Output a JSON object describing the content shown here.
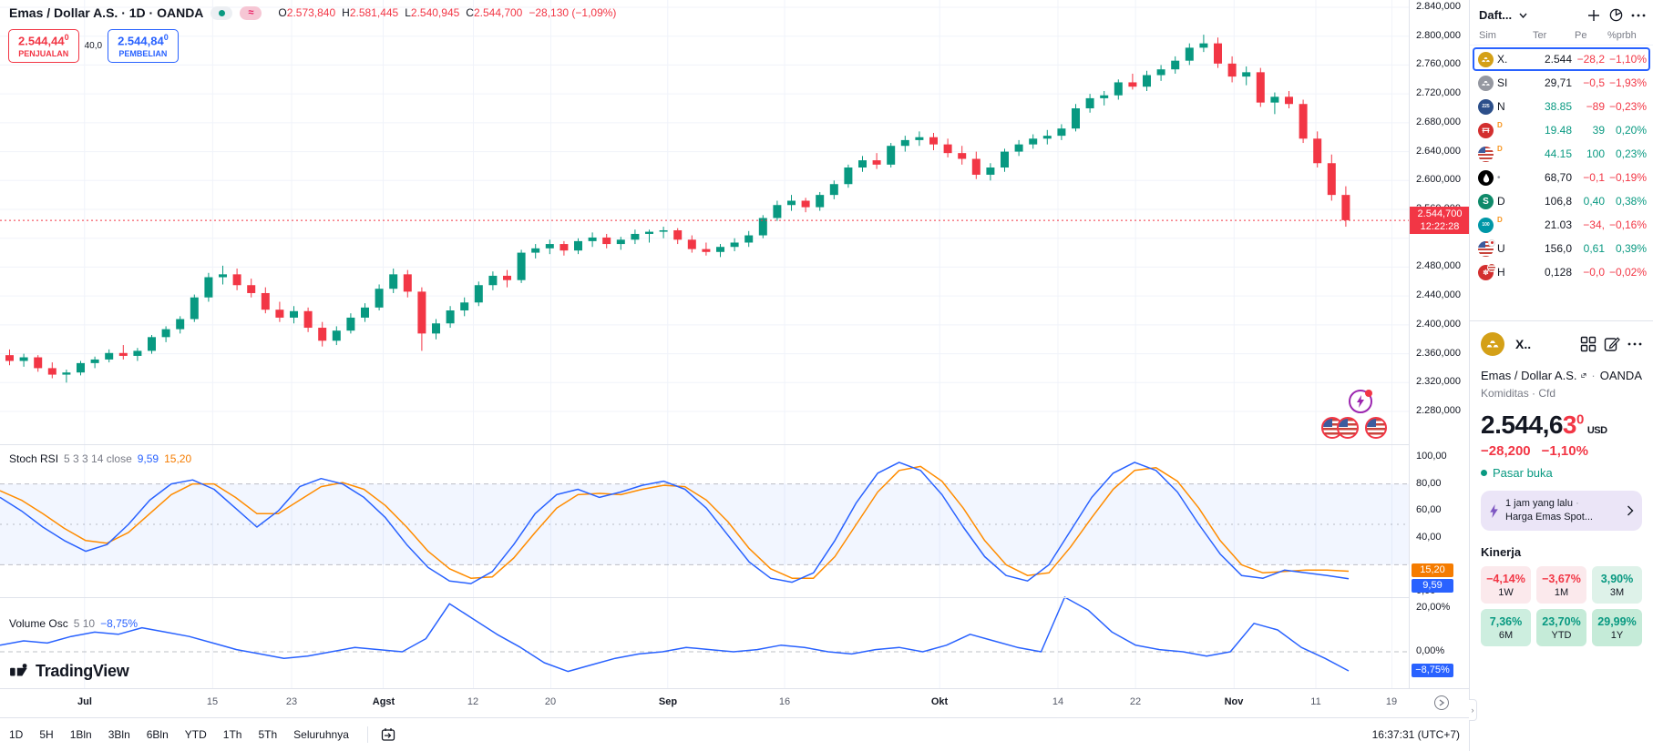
{
  "header": {
    "symbol_title": "Emas / Dollar A.S. · 1D · OANDA",
    "ohlc": {
      "o_label": "O",
      "o": "2.573,840",
      "h_label": "H",
      "h": "2.581,445",
      "l_label": "L",
      "l": "2.540,945",
      "c_label": "C",
      "c": "2.544,700",
      "change": "−28,130 (−1,09%)"
    },
    "sell": {
      "price": "2.544,44",
      "sup": "0",
      "label": "PENJUALAN"
    },
    "spread": "40,0",
    "buy": {
      "price": "2.544,84",
      "sup": "0",
      "label": "PEMBELIAN"
    }
  },
  "panes": {
    "stoch": {
      "title": "Stoch RSI",
      "params": "5 3 3 14 close",
      "k_value": "9,59",
      "d_value": "15,20"
    },
    "volume": {
      "title": "Volume Osc",
      "params": "5 10",
      "value": "−8,75%"
    }
  },
  "price_axis": {
    "labels": [
      {
        "t": "2.840,000",
        "v": 2840
      },
      {
        "t": "2.800,000",
        "v": 2800
      },
      {
        "t": "2.760,000",
        "v": 2760
      },
      {
        "t": "2.720,000",
        "v": 2720
      },
      {
        "t": "2.680,000",
        "v": 2680
      },
      {
        "t": "2.640,000",
        "v": 2640
      },
      {
        "t": "2.600,000",
        "v": 2600
      },
      {
        "t": "2.560,000",
        "v": 2560
      },
      {
        "t": "2.480,000",
        "v": 2480
      },
      {
        "t": "2.440,000",
        "v": 2440
      },
      {
        "t": "2.400,000",
        "v": 2400
      },
      {
        "t": "2.360,000",
        "v": 2360
      },
      {
        "t": "2.320,000",
        "v": 2320
      },
      {
        "t": "2.280,000",
        "v": 2280
      }
    ],
    "stoch_labels": [
      {
        "t": "100,00",
        "v": 100
      },
      {
        "t": "80,00",
        "v": 80
      },
      {
        "t": "60,00",
        "v": 60
      },
      {
        "t": "40,00",
        "v": 40
      },
      {
        "t": "0,00",
        "v": 0
      }
    ],
    "vol_labels": [
      {
        "t": "20,00%",
        "v": 20
      },
      {
        "t": "0,00%",
        "v": 0
      }
    ],
    "last": {
      "price": "2.544,700",
      "time": "12:22:28"
    },
    "k_badge": "9,59",
    "d_badge": "15,20",
    "vol_badge": "−8,75%"
  },
  "time_axis": {
    "labels": [
      {
        "t": "Jul",
        "f": 0.06,
        "m": true
      },
      {
        "t": "15",
        "f": 0.151
      },
      {
        "t": "23",
        "f": 0.207
      },
      {
        "t": "Agst",
        "f": 0.272,
        "m": true
      },
      {
        "t": "12",
        "f": 0.336
      },
      {
        "t": "20",
        "f": 0.391
      },
      {
        "t": "Sep",
        "f": 0.474,
        "m": true
      },
      {
        "t": "16",
        "f": 0.557
      },
      {
        "t": "Okt",
        "f": 0.667,
        "m": true
      },
      {
        "t": "14",
        "f": 0.751
      },
      {
        "t": "22",
        "f": 0.806
      },
      {
        "t": "Nov",
        "f": 0.876,
        "m": true
      },
      {
        "t": "11",
        "f": 0.934
      },
      {
        "t": "19",
        "f": 0.988
      }
    ]
  },
  "toolbar": {
    "ranges": [
      "1D",
      "5H",
      "1Bln",
      "3Bln",
      "6Bln",
      "YTD",
      "1Th",
      "5Th",
      "Seluruhnya"
    ],
    "clock": "16:37:31 (UTC+7)"
  },
  "attribution": "TradingView",
  "watchlist": {
    "title": "Daft...",
    "columns": [
      "Sim",
      "Ter",
      "Pe",
      "%prbh"
    ],
    "rows": [
      {
        "icon": "gold",
        "sym": "X.",
        "last": "2.544",
        "chg": "−28,2",
        "pct": "−1,10%",
        "last_c": "dark",
        "dir": "down",
        "selected": true
      },
      {
        "icon": "silver",
        "sym": "SI",
        "last": "29,71",
        "chg": "−0,5",
        "pct": "−1,93%",
        "last_c": "dark",
        "dir": "down"
      },
      {
        "icon": "n225",
        "sym": "N",
        "last": "38.85",
        "chg": "−89",
        "pct": "−0,23%",
        "last_c": "up",
        "dir": "down"
      },
      {
        "icon": "redidx",
        "sym": "",
        "d": true,
        "last": "19.48",
        "chg": "39",
        "pct": "0,20%",
        "last_c": "up",
        "dir": "up"
      },
      {
        "icon": "usflag",
        "sym": "",
        "d": true,
        "last": "44.15",
        "chg": "100",
        "pct": "0,23%",
        "last_c": "up",
        "dir": "up"
      },
      {
        "icon": "oil",
        "sym": "",
        "dot": true,
        "last": "68,70",
        "chg": "−0,1",
        "pct": "−0,19%",
        "last_c": "dark",
        "dir": "down"
      },
      {
        "icon": "sgreen",
        "sym": "D",
        "last": "106,8",
        "chg": "0,40",
        "pct": "0,38%",
        "last_c": "dark",
        "dir": "up"
      },
      {
        "icon": "c100",
        "sym": "",
        "d": true,
        "last": "21.03",
        "chg": "−34,",
        "pct": "−0,16%",
        "last_c": "dark",
        "dir": "down"
      },
      {
        "icon": "usjp",
        "sym": "U",
        "last": "156,0",
        "chg": "0,61",
        "pct": "0,39%",
        "last_c": "dark",
        "dir": "up"
      },
      {
        "icon": "hkus",
        "sym": "H",
        "last": "0,128",
        "chg": "−0,0",
        "pct": "−0,02%",
        "last_c": "dark",
        "dir": "down"
      }
    ]
  },
  "detail": {
    "sym_short": "X..",
    "name": "Emas / Dollar A.S.",
    "exchange": "OANDA",
    "type": "Komiditas · Cfd",
    "price_main": "2.544,6",
    "price_red": "3",
    "price_sup": "0",
    "currency": "USD",
    "change": "−28,200",
    "change_pct": "−1,10%",
    "market_status": "Pasar buka",
    "news": {
      "time": "1 jam yang lalu",
      "title": "Harga Emas Spot..."
    },
    "kinerja": {
      "title": "Kinerja",
      "cells": [
        {
          "v": "−4,14%",
          "p": "1W",
          "neg": true,
          "bg": "#fbe9ec"
        },
        {
          "v": "−3,67%",
          "p": "1M",
          "neg": true,
          "bg": "#fbe9ec"
        },
        {
          "v": "3,90%",
          "p": "3M",
          "neg": false,
          "bg": "#def2e9"
        },
        {
          "v": "7,36%",
          "p": "6M",
          "neg": false,
          "bg": "#cdeedf"
        },
        {
          "v": "23,70%",
          "p": "YTD",
          "neg": false,
          "bg": "#c5ebd8"
        },
        {
          "v": "29,99%",
          "p": "1Y",
          "neg": false,
          "bg": "#c5ebd8"
        }
      ]
    }
  },
  "chart_data": {
    "type": "candlestick",
    "symbol": "XAUUSD",
    "interval": "1D",
    "title": "Emas / Dollar A.S. 1D OANDA",
    "price_range": [
      2280,
      2840
    ],
    "grid_step": 40,
    "last_price": 2544.7,
    "up_color": "#089981",
    "down_color": "#f23645",
    "candles": [
      [
        2358,
        2366,
        2344,
        2350
      ],
      [
        2350,
        2360,
        2342,
        2355
      ],
      [
        2355,
        2358,
        2335,
        2340
      ],
      [
        2340,
        2348,
        2326,
        2331
      ],
      [
        2331,
        2338,
        2320,
        2334
      ],
      [
        2334,
        2350,
        2330,
        2347
      ],
      [
        2347,
        2356,
        2340,
        2352
      ],
      [
        2352,
        2366,
        2348,
        2361
      ],
      [
        2361,
        2372,
        2352,
        2357
      ],
      [
        2357,
        2368,
        2350,
        2364
      ],
      [
        2364,
        2386,
        2360,
        2383
      ],
      [
        2383,
        2398,
        2376,
        2394
      ],
      [
        2394,
        2412,
        2388,
        2408
      ],
      [
        2408,
        2442,
        2404,
        2438
      ],
      [
        2438,
        2472,
        2432,
        2466
      ],
      [
        2466,
        2482,
        2456,
        2470
      ],
      [
        2470,
        2478,
        2448,
        2455
      ],
      [
        2455,
        2464,
        2438,
        2444
      ],
      [
        2444,
        2452,
        2416,
        2421
      ],
      [
        2421,
        2432,
        2404,
        2410
      ],
      [
        2410,
        2426,
        2402,
        2419
      ],
      [
        2419,
        2424,
        2390,
        2396
      ],
      [
        2396,
        2404,
        2370,
        2378
      ],
      [
        2378,
        2398,
        2372,
        2392
      ],
      [
        2392,
        2416,
        2388,
        2410
      ],
      [
        2410,
        2430,
        2404,
        2424
      ],
      [
        2424,
        2456,
        2420,
        2450
      ],
      [
        2450,
        2478,
        2444,
        2470
      ],
      [
        2470,
        2476,
        2438,
        2446
      ],
      [
        2446,
        2452,
        2364,
        2388
      ],
      [
        2388,
        2408,
        2380,
        2402
      ],
      [
        2402,
        2426,
        2396,
        2420
      ],
      [
        2420,
        2438,
        2412,
        2431
      ],
      [
        2431,
        2460,
        2426,
        2455
      ],
      [
        2455,
        2474,
        2448,
        2468
      ],
      [
        2468,
        2476,
        2452,
        2462
      ],
      [
        2462,
        2504,
        2458,
        2500
      ],
      [
        2500,
        2512,
        2492,
        2506
      ],
      [
        2506,
        2518,
        2498,
        2512
      ],
      [
        2512,
        2516,
        2496,
        2503
      ],
      [
        2503,
        2520,
        2498,
        2516
      ],
      [
        2516,
        2528,
        2508,
        2521
      ],
      [
        2521,
        2526,
        2506,
        2512
      ],
      [
        2512,
        2522,
        2504,
        2518
      ],
      [
        2518,
        2532,
        2512,
        2526
      ],
      [
        2526,
        2532,
        2514,
        2529
      ],
      [
        2529,
        2536,
        2520,
        2531
      ],
      [
        2531,
        2534,
        2512,
        2518
      ],
      [
        2518,
        2524,
        2500,
        2505
      ],
      [
        2505,
        2514,
        2496,
        2501
      ],
      [
        2501,
        2512,
        2494,
        2508
      ],
      [
        2508,
        2520,
        2502,
        2514
      ],
      [
        2514,
        2530,
        2508,
        2524
      ],
      [
        2524,
        2552,
        2520,
        2548
      ],
      [
        2548,
        2572,
        2544,
        2566
      ],
      [
        2566,
        2580,
        2558,
        2572
      ],
      [
        2572,
        2576,
        2556,
        2563
      ],
      [
        2563,
        2584,
        2558,
        2580
      ],
      [
        2580,
        2600,
        2574,
        2595
      ],
      [
        2595,
        2622,
        2590,
        2618
      ],
      [
        2618,
        2634,
        2612,
        2628
      ],
      [
        2628,
        2638,
        2616,
        2622
      ],
      [
        2622,
        2652,
        2618,
        2648
      ],
      [
        2648,
        2662,
        2640,
        2656
      ],
      [
        2656,
        2668,
        2648,
        2660
      ],
      [
        2660,
        2666,
        2642,
        2650
      ],
      [
        2650,
        2658,
        2632,
        2638
      ],
      [
        2638,
        2648,
        2622,
        2630
      ],
      [
        2630,
        2640,
        2602,
        2608
      ],
      [
        2608,
        2624,
        2600,
        2618
      ],
      [
        2618,
        2644,
        2612,
        2640
      ],
      [
        2640,
        2656,
        2634,
        2650
      ],
      [
        2650,
        2664,
        2644,
        2658
      ],
      [
        2658,
        2670,
        2650,
        2662
      ],
      [
        2662,
        2678,
        2656,
        2672
      ],
      [
        2672,
        2706,
        2668,
        2700
      ],
      [
        2700,
        2720,
        2694,
        2714
      ],
      [
        2714,
        2724,
        2704,
        2718
      ],
      [
        2718,
        2740,
        2712,
        2736
      ],
      [
        2736,
        2748,
        2726,
        2730
      ],
      [
        2730,
        2752,
        2724,
        2746
      ],
      [
        2746,
        2760,
        2738,
        2754
      ],
      [
        2754,
        2772,
        2748,
        2766
      ],
      [
        2766,
        2790,
        2760,
        2784
      ],
      [
        2784,
        2802,
        2778,
        2790
      ],
      [
        2790,
        2798,
        2756,
        2762
      ],
      [
        2762,
        2772,
        2736,
        2744
      ],
      [
        2744,
        2758,
        2732,
        2750
      ],
      [
        2750,
        2756,
        2702,
        2708
      ],
      [
        2708,
        2722,
        2692,
        2716
      ],
      [
        2716,
        2724,
        2700,
        2706
      ],
      [
        2706,
        2712,
        2652,
        2658
      ],
      [
        2658,
        2668,
        2618,
        2624
      ],
      [
        2624,
        2636,
        2572,
        2580
      ],
      [
        2580,
        2592,
        2536,
        2545
      ]
    ],
    "stoch_rsi": {
      "range": [
        0,
        100
      ],
      "bands": [
        80,
        50,
        20
      ],
      "k_last": 9.59,
      "d_last": 15.2,
      "k": [
        70,
        60,
        48,
        38,
        30,
        35,
        50,
        68,
        80,
        83,
        76,
        62,
        48,
        60,
        78,
        84,
        80,
        70,
        55,
        35,
        18,
        8,
        6,
        15,
        35,
        58,
        72,
        76,
        70,
        74,
        79,
        82,
        76,
        62,
        42,
        22,
        10,
        7,
        14,
        38,
        66,
        88,
        96,
        90,
        72,
        48,
        26,
        12,
        8,
        20,
        45,
        70,
        88,
        96,
        90,
        74,
        50,
        28,
        12,
        10,
        16,
        14,
        12,
        9.59
      ],
      "d": [
        75,
        68,
        58,
        47,
        38,
        36,
        44,
        58,
        72,
        80,
        80,
        70,
        58,
        58,
        68,
        78,
        81,
        76,
        64,
        48,
        30,
        17,
        10,
        11,
        25,
        44,
        62,
        72,
        73,
        72,
        76,
        79,
        78,
        68,
        52,
        32,
        17,
        10,
        10,
        26,
        50,
        74,
        90,
        93,
        82,
        62,
        38,
        20,
        12,
        14,
        33,
        55,
        76,
        90,
        92,
        82,
        62,
        38,
        20,
        14,
        15,
        16,
        16,
        15.2
      ]
    },
    "volume_osc": {
      "zero": 0,
      "last": -8.75,
      "values": [
        3,
        5,
        4,
        7,
        9,
        8,
        11,
        9,
        7,
        4,
        1,
        -1,
        -3,
        -2,
        0,
        2,
        1,
        0,
        6,
        22,
        15,
        8,
        2,
        -5,
        -9,
        -6,
        -3,
        -1,
        0,
        2,
        1,
        0,
        1,
        3,
        2,
        0,
        -1,
        1,
        2,
        0,
        3,
        8,
        5,
        2,
        0,
        25,
        19,
        9,
        3,
        1,
        0,
        -2,
        0,
        13,
        10,
        2,
        -3,
        -8.75
      ]
    },
    "x_labels": [
      "Jul",
      "15",
      "23",
      "Agst",
      "12",
      "20",
      "Sep",
      "16",
      "Okt",
      "14",
      "22",
      "Nov",
      "11",
      "19"
    ]
  }
}
